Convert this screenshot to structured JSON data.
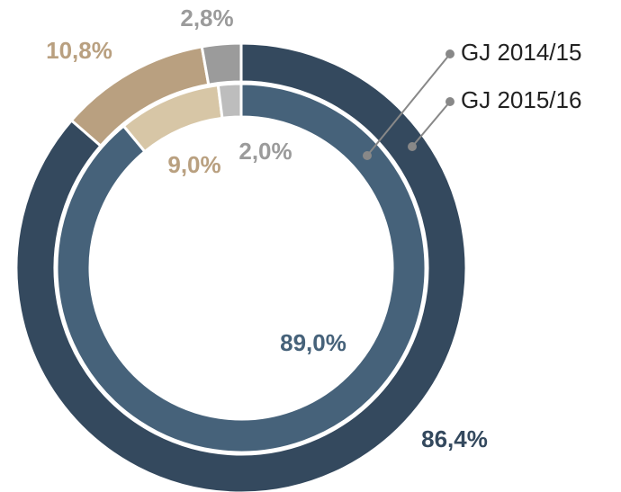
{
  "chart_data": {
    "type": "donut",
    "series": [
      {
        "name": "GJ 2015/16",
        "colors": [
          "#34495e",
          "#b9a080",
          "#9b9b9b"
        ],
        "values": [
          86.4,
          10.8,
          2.8
        ],
        "value_labels": [
          "86,4%",
          "10,8%",
          "2,8%"
        ]
      },
      {
        "name": "GJ 2014/15",
        "colors": [
          "#46627a",
          "#d7c6a6",
          "#bdbdbd"
        ],
        "values": [
          89.0,
          9.0,
          2.0
        ],
        "value_labels": [
          "89,0%",
          "9,0%",
          "2,0%"
        ]
      }
    ]
  }
}
